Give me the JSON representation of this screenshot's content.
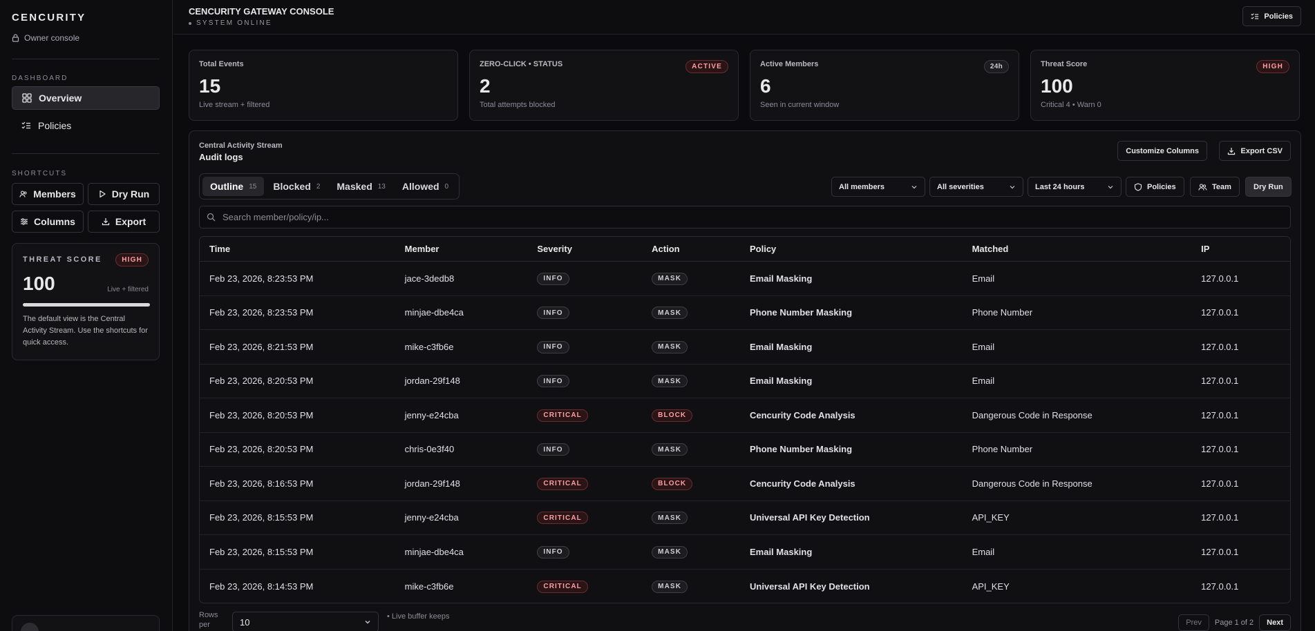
{
  "sidebar": {
    "brand": "CENCURITY",
    "owner": "Owner console",
    "dashboard_label": "DASHBOARD",
    "nav": [
      {
        "label": "Overview",
        "icon": "grid-icon",
        "active": true
      },
      {
        "label": "Policies",
        "icon": "list-check-icon",
        "active": false
      }
    ],
    "shortcuts_label": "SHORTCUTS",
    "shortcuts": [
      {
        "label": "Members",
        "icon": "users-icon"
      },
      {
        "label": "Dry Run",
        "icon": "play-icon"
      },
      {
        "label": "Columns",
        "icon": "sliders-icon"
      },
      {
        "label": "Export",
        "icon": "download-icon"
      }
    ],
    "threat_card": {
      "label": "THREAT SCORE",
      "badge": "HIGH",
      "value": "100",
      "sub": "Live + filtered",
      "level": 1.0,
      "text": "The default view is the Central Activity Stream. Use the shortcuts for quick access."
    }
  },
  "header": {
    "title": "CENCURITY GATEWAY CONSOLE",
    "status": "SYSTEM ONLINE",
    "policies_button": "Policies"
  },
  "stats": [
    {
      "label": "Total Events",
      "value": "15",
      "sub": "Live stream + filtered",
      "badge": ""
    },
    {
      "label": "ZERO-CLICK • STATUS",
      "value": "2",
      "sub": "Total attempts blocked",
      "badge": "ACTIVE"
    },
    {
      "label": "Active Members",
      "value": "6",
      "sub": "Seen in current window",
      "badge": "24h"
    },
    {
      "label": "Threat Score",
      "value": "100",
      "sub": "Critical 4 • Warn 0",
      "badge": "HIGH"
    }
  ],
  "panel": {
    "kicker": "Central Activity Stream",
    "title": "Audit logs",
    "customize_button": "Customize Columns",
    "export_button": "Export CSV",
    "tabs": [
      {
        "label": "Outline",
        "count": "15",
        "active": true
      },
      {
        "label": "Blocked",
        "count": "2",
        "active": false
      },
      {
        "label": "Masked",
        "count": "13",
        "active": false
      },
      {
        "label": "Allowed",
        "count": "0",
        "active": false
      }
    ],
    "filters": {
      "members": "All members",
      "severities": "All severities",
      "range": "Last 24 hours"
    },
    "quick_buttons": {
      "policies": "Policies",
      "team": "Team",
      "dry_run": "Dry Run"
    },
    "search_placeholder": "Search member/policy/ip...",
    "columns": [
      "Time",
      "Member",
      "Severity",
      "Action",
      "Policy",
      "Matched",
      "IP"
    ],
    "rows": [
      {
        "time": "Feb 23, 2026, 8:23:53 PM",
        "member": "jace-3dedb8",
        "severity": "INFO",
        "action": "MASK",
        "policy": "Email Masking",
        "matched": "Email",
        "ip": "127.0.0.1"
      },
      {
        "time": "Feb 23, 2026, 8:23:53 PM",
        "member": "minjae-dbe4ca",
        "severity": "INFO",
        "action": "MASK",
        "policy": "Phone Number Masking",
        "matched": "Phone Number",
        "ip": "127.0.0.1"
      },
      {
        "time": "Feb 23, 2026, 8:21:53 PM",
        "member": "mike-c3fb6e",
        "severity": "INFO",
        "action": "MASK",
        "policy": "Email Masking",
        "matched": "Email",
        "ip": "127.0.0.1"
      },
      {
        "time": "Feb 23, 2026, 8:20:53 PM",
        "member": "jordan-29f148",
        "severity": "INFO",
        "action": "MASK",
        "policy": "Email Masking",
        "matched": "Email",
        "ip": "127.0.0.1"
      },
      {
        "time": "Feb 23, 2026, 8:20:53 PM",
        "member": "jenny-e24cba",
        "severity": "CRITICAL",
        "action": "BLOCK",
        "policy": "Cencurity Code Analysis",
        "matched": "Dangerous Code in Response",
        "ip": "127.0.0.1"
      },
      {
        "time": "Feb 23, 2026, 8:20:53 PM",
        "member": "chris-0e3f40",
        "severity": "INFO",
        "action": "MASK",
        "policy": "Phone Number Masking",
        "matched": "Phone Number",
        "ip": "127.0.0.1"
      },
      {
        "time": "Feb 23, 2026, 8:16:53 PM",
        "member": "jordan-29f148",
        "severity": "CRITICAL",
        "action": "BLOCK",
        "policy": "Cencurity Code Analysis",
        "matched": "Dangerous Code in Response",
        "ip": "127.0.0.1"
      },
      {
        "time": "Feb 23, 2026, 8:15:53 PM",
        "member": "jenny-e24cba",
        "severity": "CRITICAL",
        "action": "MASK",
        "policy": "Universal API Key Detection",
        "matched": "API_KEY",
        "ip": "127.0.0.1"
      },
      {
        "time": "Feb 23, 2026, 8:15:53 PM",
        "member": "minjae-dbe4ca",
        "severity": "INFO",
        "action": "MASK",
        "policy": "Email Masking",
        "matched": "Email",
        "ip": "127.0.0.1"
      },
      {
        "time": "Feb 23, 2026, 8:14:53 PM",
        "member": "mike-c3fb6e",
        "severity": "CRITICAL",
        "action": "MASK",
        "policy": "Universal API Key Detection",
        "matched": "API_KEY",
        "ip": "127.0.0.1"
      }
    ],
    "footer": {
      "rows_label": "Rows per",
      "rows_value": "10",
      "live_note": "• Live buffer keeps",
      "prev": "Prev",
      "page": "Page 1 of 2",
      "next": "Next"
    }
  }
}
